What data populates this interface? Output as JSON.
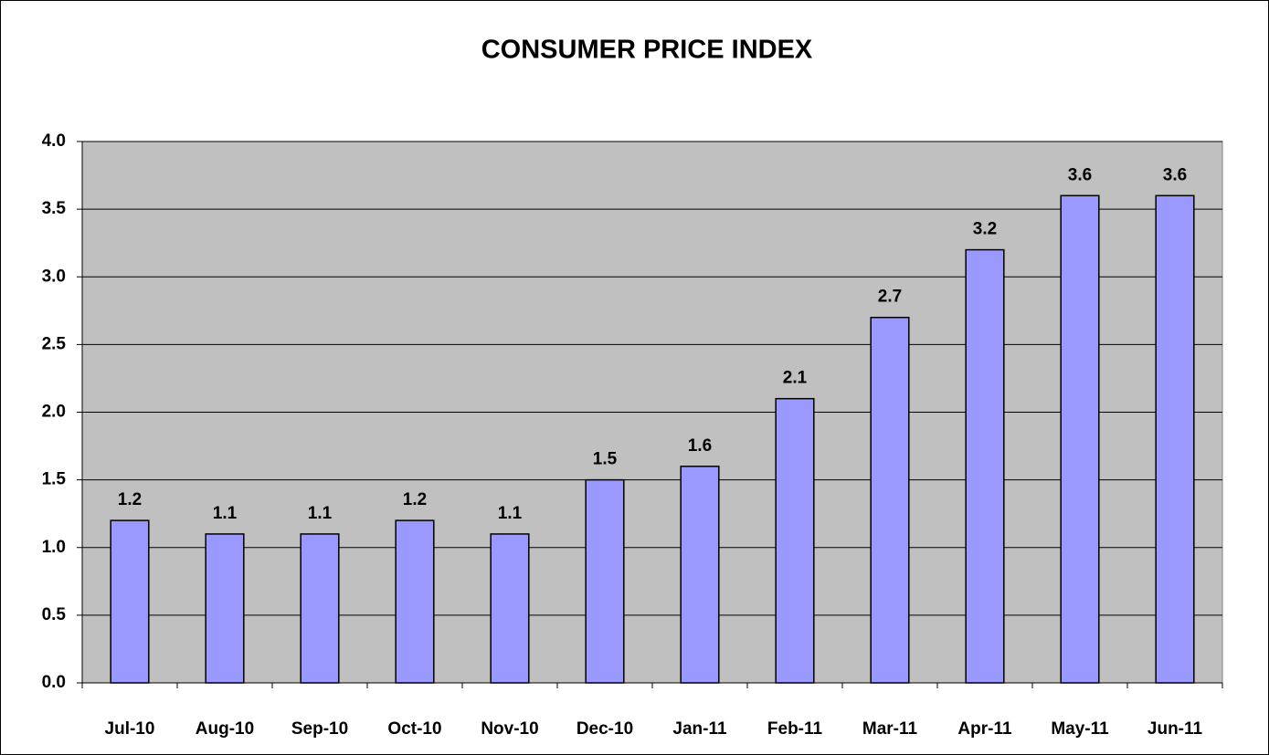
{
  "chart_data": {
    "type": "bar",
    "title": "CONSUMER PRICE INDEX",
    "categories": [
      "Jul-10",
      "Aug-10",
      "Sep-10",
      "Oct-10",
      "Nov-10",
      "Dec-10",
      "Jan-11",
      "Feb-11",
      "Mar-11",
      "Apr-11",
      "May-11",
      "Jun-11"
    ],
    "values": [
      1.2,
      1.1,
      1.1,
      1.2,
      1.1,
      1.5,
      1.6,
      2.1,
      2.7,
      3.2,
      3.6,
      3.6
    ],
    "color": "#9999ff",
    "ylim": [
      0,
      4
    ],
    "yticks": [
      {
        "value": 0,
        "label": "0.0"
      },
      0.5,
      {
        "value": 1,
        "label": "1.0"
      },
      1.5,
      {
        "value": 2,
        "label": "2.0"
      },
      2.5,
      {
        "value": 3,
        "label": "3.0"
      },
      3.5,
      {
        "value": 4,
        "label": "4.0"
      }
    ],
    "grid": true
  }
}
